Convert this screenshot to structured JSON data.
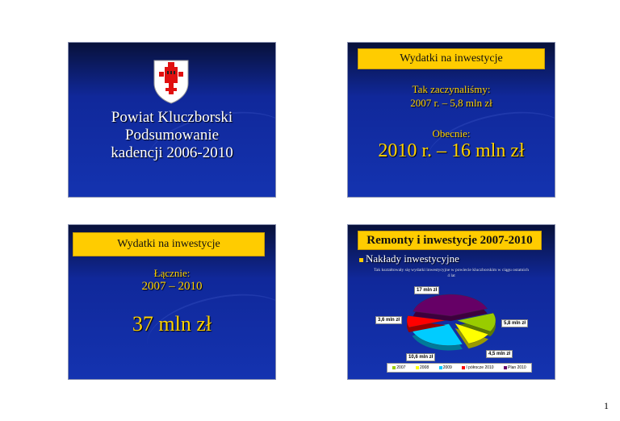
{
  "slide1": {
    "title_lines": [
      "Powiat Kluczborski",
      "Podsumowanie",
      "kadencji 2006-2010"
    ],
    "logo": "coat-of-arms-red-eagle"
  },
  "slide2": {
    "banner": "Wydatki na inwestycje",
    "line1": "Tak zaczynaliśmy:",
    "line2": "2007 r. – 5,8 mln zł",
    "line3": "Obecnie:",
    "line4": "2010 r. – 16 mln zł"
  },
  "slide3": {
    "banner": "Wydatki na inwestycje",
    "line1": "Łącznie:",
    "line2": "2007 – 2010",
    "line3": "37 mln zł"
  },
  "slide4": {
    "banner": "Remonty i inwestycje 2007-2010",
    "bullet": "Nakłady inwestycyjne",
    "chart_data": {
      "type": "pie",
      "title": "Tak kształtowały się wydatki inwestycyjne w powiecie kluczborskim w ciągu ostatnich 4 lat",
      "categories": [
        "2007",
        "2008",
        "2009",
        "I półrocze 2010",
        "Plan 2010"
      ],
      "values": [
        5.8,
        4.5,
        10.6,
        3.6,
        17
      ],
      "data_labels": [
        "5,8 mln zł",
        "4,5 mln zł",
        "10,6 mln zł",
        "3,6 mln zł",
        "17 mln zł"
      ],
      "colors": [
        "#99cc00",
        "#ffff00",
        "#00ccff",
        "#ff0000",
        "#660066"
      ],
      "legend": "bottom"
    }
  },
  "page_number": "1"
}
